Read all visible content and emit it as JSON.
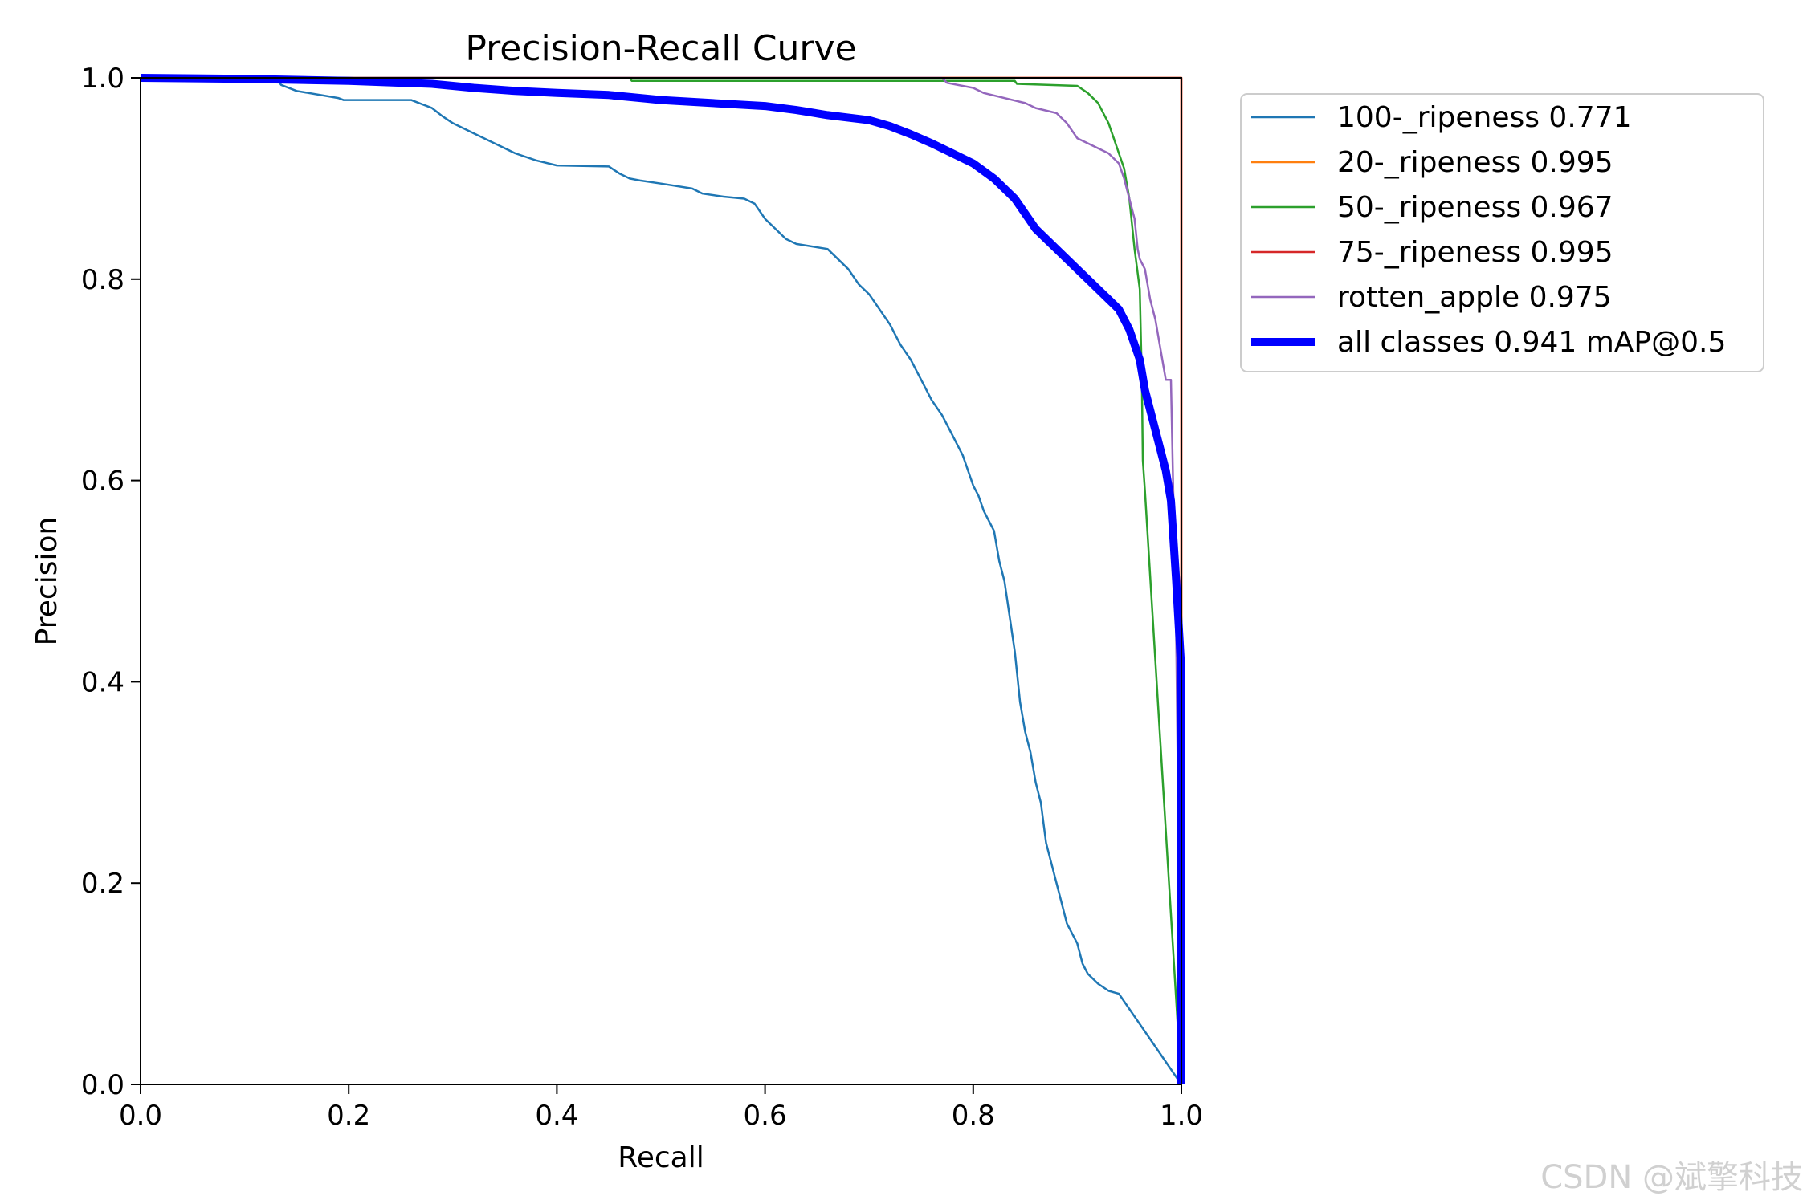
{
  "chart_data": {
    "type": "line",
    "title": "Precision-Recall Curve",
    "xlabel": "Recall",
    "ylabel": "Precision",
    "xlim": [
      0,
      1
    ],
    "ylim": [
      0,
      1
    ],
    "xticks": [
      "0.0",
      "0.2",
      "0.4",
      "0.6",
      "0.8",
      "1.0"
    ],
    "yticks": [
      "0.0",
      "0.2",
      "0.4",
      "0.6",
      "0.8",
      "1.0"
    ],
    "grid": false,
    "legend_position": "outside-top-right",
    "series": [
      {
        "name": "100-_ripeness 0.771",
        "color": "#1f77b4",
        "x": [
          0,
          0.13,
          0.135,
          0.15,
          0.19,
          0.195,
          0.26,
          0.28,
          0.29,
          0.3,
          0.32,
          0.34,
          0.36,
          0.38,
          0.4,
          0.45,
          0.46,
          0.47,
          0.48,
          0.5,
          0.53,
          0.54,
          0.56,
          0.58,
          0.59,
          0.6,
          0.61,
          0.62,
          0.63,
          0.66,
          0.67,
          0.68,
          0.69,
          0.7,
          0.71,
          0.72,
          0.73,
          0.74,
          0.75,
          0.76,
          0.77,
          0.78,
          0.79,
          0.8,
          0.805,
          0.81,
          0.82,
          0.825,
          0.83,
          0.84,
          0.845,
          0.85,
          0.855,
          0.86,
          0.865,
          0.87,
          0.875,
          0.88,
          0.885,
          0.89,
          0.9,
          0.905,
          0.91,
          0.92,
          0.93,
          0.94,
          1.0
        ],
        "y": [
          1.0,
          1.0,
          0.993,
          0.987,
          0.98,
          0.978,
          0.978,
          0.97,
          0.962,
          0.955,
          0.945,
          0.935,
          0.925,
          0.918,
          0.913,
          0.912,
          0.905,
          0.9,
          0.898,
          0.895,
          0.89,
          0.885,
          0.882,
          0.88,
          0.875,
          0.86,
          0.85,
          0.84,
          0.835,
          0.83,
          0.82,
          0.81,
          0.795,
          0.785,
          0.77,
          0.755,
          0.735,
          0.72,
          0.7,
          0.68,
          0.665,
          0.645,
          0.625,
          0.595,
          0.585,
          0.57,
          0.55,
          0.52,
          0.5,
          0.43,
          0.38,
          0.35,
          0.33,
          0.3,
          0.28,
          0.24,
          0.22,
          0.2,
          0.18,
          0.16,
          0.14,
          0.12,
          0.11,
          0.1,
          0.093,
          0.09,
          0.0
        ]
      },
      {
        "name": "20-_ripeness 0.995",
        "color": "#ff7f0e",
        "x": [
          0,
          0.999,
          1.0,
          1.0
        ],
        "y": [
          1.0,
          1.0,
          1.0,
          0.0
        ]
      },
      {
        "name": "50-_ripeness 0.967",
        "color": "#2ca02c",
        "x": [
          0,
          0.47,
          0.472,
          0.84,
          0.842,
          0.9,
          0.91,
          0.92,
          0.925,
          0.93,
          0.935,
          0.94,
          0.945,
          0.95,
          0.955,
          0.96,
          0.962,
          0.963,
          0.965,
          1.0
        ],
        "y": [
          1.0,
          1.0,
          0.997,
          0.997,
          0.994,
          0.992,
          0.985,
          0.975,
          0.965,
          0.955,
          0.94,
          0.925,
          0.91,
          0.88,
          0.83,
          0.79,
          0.7,
          0.62,
          0.59,
          0.0
        ]
      },
      {
        "name": "75-_ripeness 0.995",
        "color": "#d62728",
        "x": [
          0,
          0.999,
          1.0,
          1.0
        ],
        "y": [
          1.0,
          1.0,
          1.0,
          0.0
        ]
      },
      {
        "name": "rotten_apple 0.975",
        "color": "#9467bd",
        "x": [
          0,
          0.77,
          0.775,
          0.8,
          0.81,
          0.85,
          0.86,
          0.88,
          0.89,
          0.9,
          0.91,
          0.92,
          0.93,
          0.94,
          0.945,
          0.95,
          0.955,
          0.958,
          0.96,
          0.965,
          0.97,
          0.975,
          0.985,
          0.99,
          0.995,
          1.0
        ],
        "y": [
          1.0,
          1.0,
          0.995,
          0.99,
          0.985,
          0.975,
          0.97,
          0.965,
          0.955,
          0.94,
          0.935,
          0.93,
          0.925,
          0.915,
          0.9,
          0.88,
          0.86,
          0.83,
          0.82,
          0.81,
          0.78,
          0.76,
          0.7,
          0.7,
          0.45,
          0.0
        ]
      },
      {
        "name": "all classes 0.941 mAP@0.5",
        "color": "#0000ff",
        "bold": true,
        "x": [
          0,
          0.1,
          0.2,
          0.28,
          0.32,
          0.36,
          0.4,
          0.45,
          0.5,
          0.55,
          0.6,
          0.63,
          0.66,
          0.7,
          0.72,
          0.74,
          0.76,
          0.78,
          0.8,
          0.82,
          0.84,
          0.85,
          0.86,
          0.87,
          0.88,
          0.89,
          0.9,
          0.91,
          0.92,
          0.93,
          0.94,
          0.95,
          0.96,
          0.965,
          0.97,
          0.975,
          0.98,
          0.985,
          0.99,
          0.995,
          1.0,
          1.0
        ],
        "y": [
          1.0,
          0.999,
          0.997,
          0.994,
          0.99,
          0.987,
          0.985,
          0.983,
          0.978,
          0.975,
          0.972,
          0.968,
          0.963,
          0.958,
          0.952,
          0.944,
          0.935,
          0.925,
          0.915,
          0.9,
          0.88,
          0.865,
          0.85,
          0.84,
          0.83,
          0.82,
          0.81,
          0.8,
          0.79,
          0.78,
          0.77,
          0.75,
          0.72,
          0.69,
          0.67,
          0.65,
          0.63,
          0.61,
          0.58,
          0.5,
          0.41,
          0.0
        ]
      }
    ]
  },
  "watermark": "CSDN @斌擎科技"
}
